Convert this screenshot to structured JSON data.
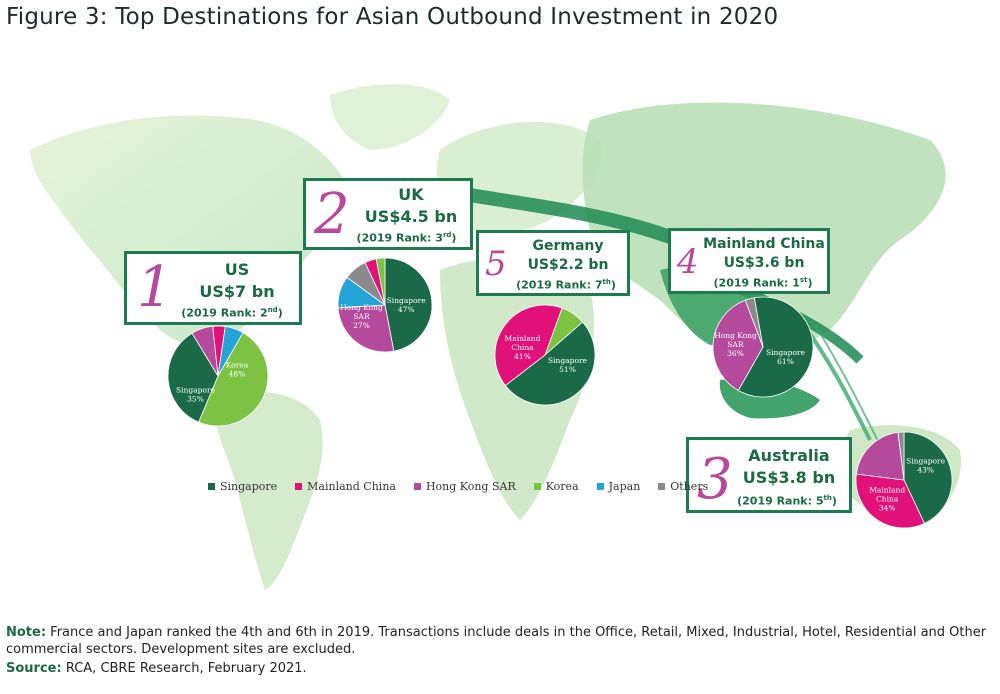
{
  "title": "Figure 3: Top Destinations for Asian Outbound Investment in 2020",
  "colors": {
    "Singapore": "#1a6a48",
    "Mainland China": "#e0127a",
    "Hong Kong SAR": "#b54a9c",
    "Korea": "#7cc243",
    "Japan": "#23a3d6",
    "Others": "#8a8a8a",
    "box_border": "#1e7a4f",
    "rank_color": "#b54a9c"
  },
  "destinations": [
    {
      "rank": "1",
      "name": "US",
      "amount": "US$7 bn",
      "prev_rank_prefix": "(2019 Rank: 2",
      "prev_rank_suffix": "nd",
      "prev_rank_close": ")"
    },
    {
      "rank": "2",
      "name": "UK",
      "amount": "US$4.5 bn",
      "prev_rank_prefix": "(2019 Rank: 3",
      "prev_rank_suffix": "rd",
      "prev_rank_close": ")"
    },
    {
      "rank": "5",
      "name": "Germany",
      "amount": "US$2.2 bn",
      "prev_rank_prefix": "(2019 Rank: 7",
      "prev_rank_suffix": "th",
      "prev_rank_close": ")"
    },
    {
      "rank": "4",
      "name": "Mainland China",
      "amount": "US$3.6 bn",
      "prev_rank_prefix": "(2019 Rank: 1",
      "prev_rank_suffix": "st",
      "prev_rank_close": ")"
    },
    {
      "rank": "3",
      "name": "Australia",
      "amount": "US$3.8 bn",
      "prev_rank_prefix": "(2019 Rank: 5",
      "prev_rank_suffix": "th",
      "prev_rank_close": ")"
    }
  ],
  "legend": [
    "Singapore",
    "Mainland China",
    "Hong Kong SAR",
    "Korea",
    "Japan",
    "Others"
  ],
  "note_label": "Note:",
  "note_text": " France and Japan ranked the 4th and 6th in 2019. Transactions include deals in the Office, Retail, Mixed, Industrial, Hotel, Residential and Other commercial sectors. Development sites are excluded.",
  "source_label": "Source:",
  "source_text": " RCA, CBRE Research, February 2021.",
  "chart_data": {
    "type": "pie",
    "charts": [
      {
        "destination": "US",
        "slices": [
          {
            "name": "Korea",
            "value": 48,
            "label": "Korea",
            "pct": "48%"
          },
          {
            "name": "Singapore",
            "value": 35,
            "label": "Singapore",
            "pct": "35%"
          },
          {
            "name": "Hong Kong SAR",
            "value": 7
          },
          {
            "name": "Mainland China",
            "value": 4
          },
          {
            "name": "Japan",
            "value": 6
          }
        ]
      },
      {
        "destination": "UK",
        "slices": [
          {
            "name": "Singapore",
            "value": 47,
            "label": "Singapore",
            "pct": "47%"
          },
          {
            "name": "Hong Kong SAR",
            "value": 27,
            "label": "Hong Kong SAR",
            "pct": "27%"
          },
          {
            "name": "Japan",
            "value": 11
          },
          {
            "name": "Others",
            "value": 8
          },
          {
            "name": "Mainland China",
            "value": 4
          },
          {
            "name": "Korea",
            "value": 3
          }
        ]
      },
      {
        "destination": "Germany",
        "slices": [
          {
            "name": "Korea",
            "value": 8
          },
          {
            "name": "Singapore",
            "value": 51,
            "label": "Singapore",
            "pct": "51%"
          },
          {
            "name": "Mainland China",
            "value": 41,
            "label": "Mainland China",
            "pct": "41%"
          }
        ]
      },
      {
        "destination": "Mainland China",
        "slices": [
          {
            "name": "Singapore",
            "value": 61,
            "label": "Singapore",
            "pct": "61%"
          },
          {
            "name": "Hong Kong SAR",
            "value": 36,
            "label": "Hong Kong SAR",
            "pct": "36%"
          },
          {
            "name": "Others",
            "value": 3
          }
        ]
      },
      {
        "destination": "Australia",
        "slices": [
          {
            "name": "Singapore",
            "value": 43,
            "label": "Singapore",
            "pct": "43%"
          },
          {
            "name": "Mainland China",
            "value": 34,
            "label": "Mainland China",
            "pct": "34%"
          },
          {
            "name": "Hong Kong SAR",
            "value": 21
          },
          {
            "name": "Others",
            "value": 2
          }
        ]
      }
    ]
  }
}
